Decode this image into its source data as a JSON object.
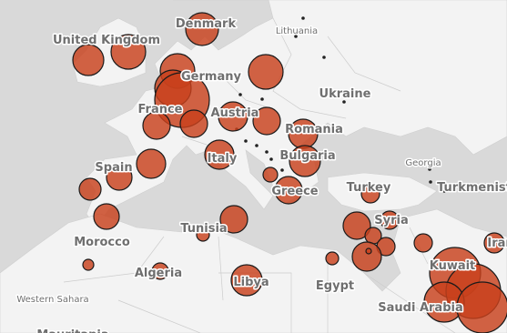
{
  "labels": [
    "United Kingdom",
    "Denmark",
    "Lithuania",
    "Germany",
    "Ukraine",
    "France",
    "Austria",
    "Romania",
    "Italy",
    "Bulgaria",
    "Spain",
    "Greece",
    "Georgia",
    "Turkey",
    "Turkmenistan",
    "Syria",
    "Tunisia",
    "Morocco",
    "Algeria",
    "Libya",
    "Egypt",
    "Western Sahara",
    "Saudi Arabia",
    "Kuwait",
    "Iran",
    "Mauritania"
  ]
}
